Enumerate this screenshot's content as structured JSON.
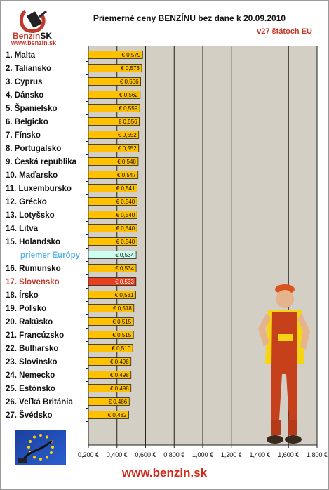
{
  "header": {
    "brand_name": "Benzin",
    "brand_suffix": "SK",
    "brand_url": "www.benzin.sk",
    "title": "Priemerné ceny BENZÍNU bez dane k 20.09.2010",
    "subtitle": "v27 štátoch EU"
  },
  "footer": {
    "url": "www.benzin.sk"
  },
  "colors": {
    "bar": "#ffc000",
    "bar_europe": "#ccffee",
    "bar_slovakia": "#e8401c",
    "label_europe": "#5ab4e6",
    "label_slovakia": "#c0392b",
    "plot_bg": "#d4cfc4"
  },
  "chart_data": {
    "type": "bar",
    "orientation": "horizontal",
    "title": "Priemerné ceny BENZÍNU bez dane k 20.09.2010",
    "subtitle": "v27 štátoch EU",
    "xlim": [
      0.2,
      1.8
    ],
    "x_ticks": [
      "0,200 €",
      "0,400 €",
      "0,600 €",
      "0,800 €",
      "1,000 €",
      "1,200 €",
      "1,400 €",
      "1,600 €",
      "1,800 €"
    ],
    "grid": true,
    "categories": [
      "1. Malta",
      "2. Taliansko",
      "3. Cyprus",
      "4. Dánsko",
      "5. Španielsko",
      "6. Belgicko",
      "7. Fínsko",
      "8. Portugalsko",
      "9. Česká republika",
      "10. Maďarsko",
      "11. Luxembursko",
      "12. Grécko",
      "13. Lotyšsko",
      "14. Litva",
      "15. Holandsko",
      "priemer Európy",
      "16. Rumunsko",
      "17. Slovensko",
      "18. Írsko",
      "19. Poľsko",
      "20. Rakúsko",
      "21. Francúzsko",
      "22. Bulharsko",
      "23. Slovinsko",
      "24. Nemecko",
      "25. Estónsko",
      "26. Veľká Británia",
      "27. Švédsko"
    ],
    "values": [
      0.579,
      0.573,
      0.566,
      0.562,
      0.559,
      0.556,
      0.552,
      0.552,
      0.548,
      0.547,
      0.541,
      0.54,
      0.54,
      0.54,
      0.54,
      0.534,
      0.534,
      0.533,
      0.531,
      0.518,
      0.515,
      0.515,
      0.51,
      0.498,
      0.498,
      0.498,
      0.486,
      0.482
    ],
    "value_labels": [
      "€ 0,579",
      "€ 0,573",
      "€ 0,566",
      "€ 0,562",
      "€ 0,559",
      "€ 0,556",
      "€ 0,552",
      "€ 0,552",
      "€ 0,548",
      "€ 0,547",
      "€ 0,541",
      "€ 0,540",
      "€ 0,540",
      "€ 0,540",
      "€ 0,540",
      "€ 0,534",
      "€ 0,534",
      "€ 0,533",
      "€ 0,531",
      "€ 0,518",
      "€ 0,515",
      "€ 0,515",
      "€ 0,510",
      "€ 0,498",
      "€ 0,498",
      "€ 0,498",
      "€ 0,486",
      "€ 0,482"
    ],
    "highlight": {
      "priemer Európy": "europe",
      "17. Slovensko": "slovakia"
    }
  }
}
